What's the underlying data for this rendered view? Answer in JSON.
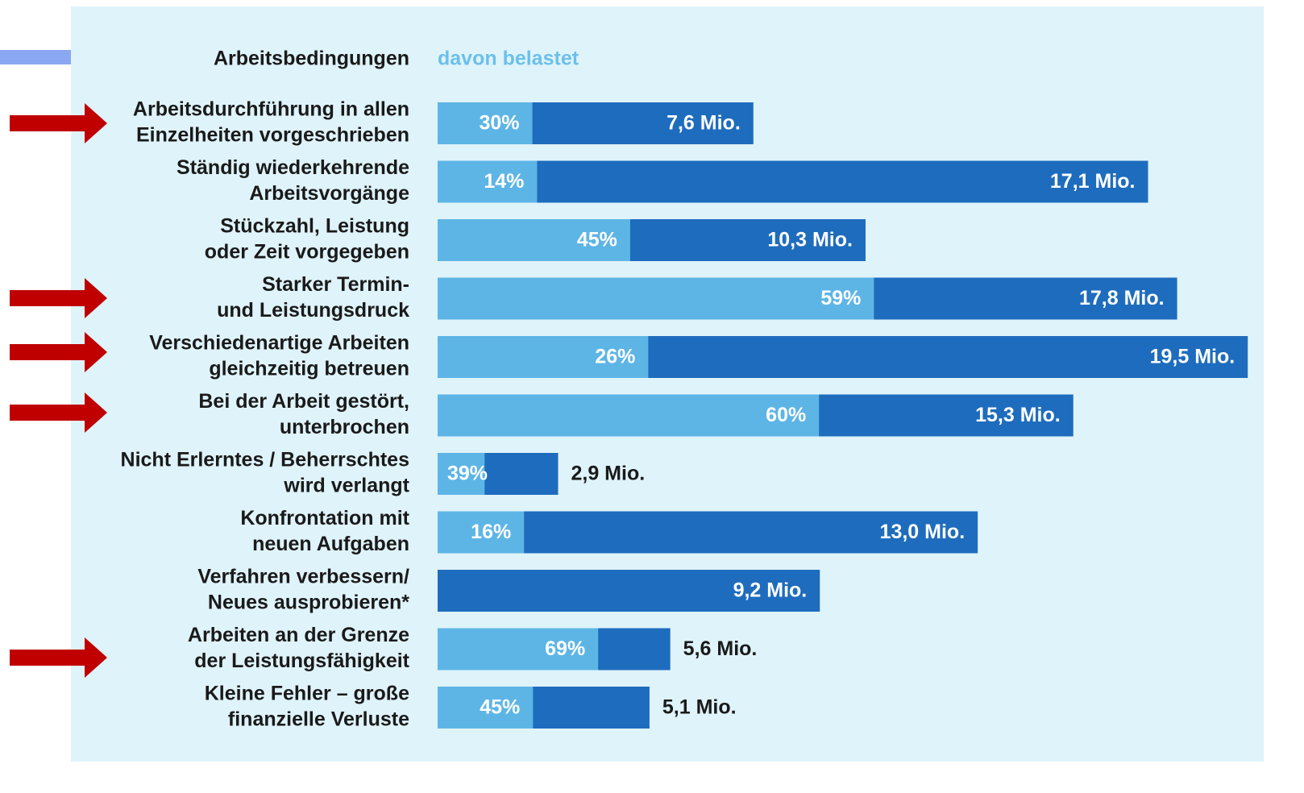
{
  "chart_data": {
    "type": "bar",
    "orientation": "horizontal",
    "category_header": "Arbeitsbedingungen",
    "categories": [
      [
        "Arbeitsdurchführung in allen",
        "Einzelheiten vorgeschrieben"
      ],
      [
        "Ständig wiederkehrende",
        "Arbeitsvorgänge"
      ],
      [
        "Stückzahl, Leistung",
        "oder Zeit vorgegeben"
      ],
      [
        "Starker Termin-",
        "und Leistungsdruck"
      ],
      [
        "Verschiedenartige Arbeiten",
        "gleichzeitig betreuen"
      ],
      [
        "Bei der Arbeit gestört,",
        "unterbrochen"
      ],
      [
        "Nicht Erlerntes / Beherrschtes",
        "wird verlangt"
      ],
      [
        "Konfrontation mit",
        "neuen Aufgaben"
      ],
      [
        "Verfahren verbessern/",
        "Neues ausprobieren*"
      ],
      [
        "Arbeiten an der Grenze",
        "der Leistungsfähigkeit"
      ],
      [
        "Kleine Fehler – große",
        "finanzielle Verluste"
      ]
    ],
    "values": [
      7.6,
      17.1,
      10.3,
      17.8,
      19.5,
      15.3,
      2.9,
      13.0,
      9.2,
      5.6,
      5.1
    ],
    "value_labels": [
      "7,6 Mio.",
      "17,1 Mio.",
      "10,3 Mio.",
      "17,8 Mio.",
      "19,5 Mio.",
      "15,3 Mio.",
      "2,9 Mio.",
      "13,0 Mio.",
      "9,2 Mio.",
      "5,6 Mio.",
      "5,1 Mio."
    ],
    "color": "#1e6cbd",
    "share_series": {
      "name": "davon belastet",
      "color": "#5db5e6",
      "values": [
        30,
        14,
        45,
        59,
        26,
        60,
        39,
        16,
        null,
        69,
        45
      ],
      "value_labels": [
        "30%",
        "14%",
        "45%",
        "59%",
        "26%",
        "60%",
        "39%",
        "16%",
        null,
        "69%",
        "45%"
      ]
    },
    "xlim": [
      0,
      20
    ]
  }
}
